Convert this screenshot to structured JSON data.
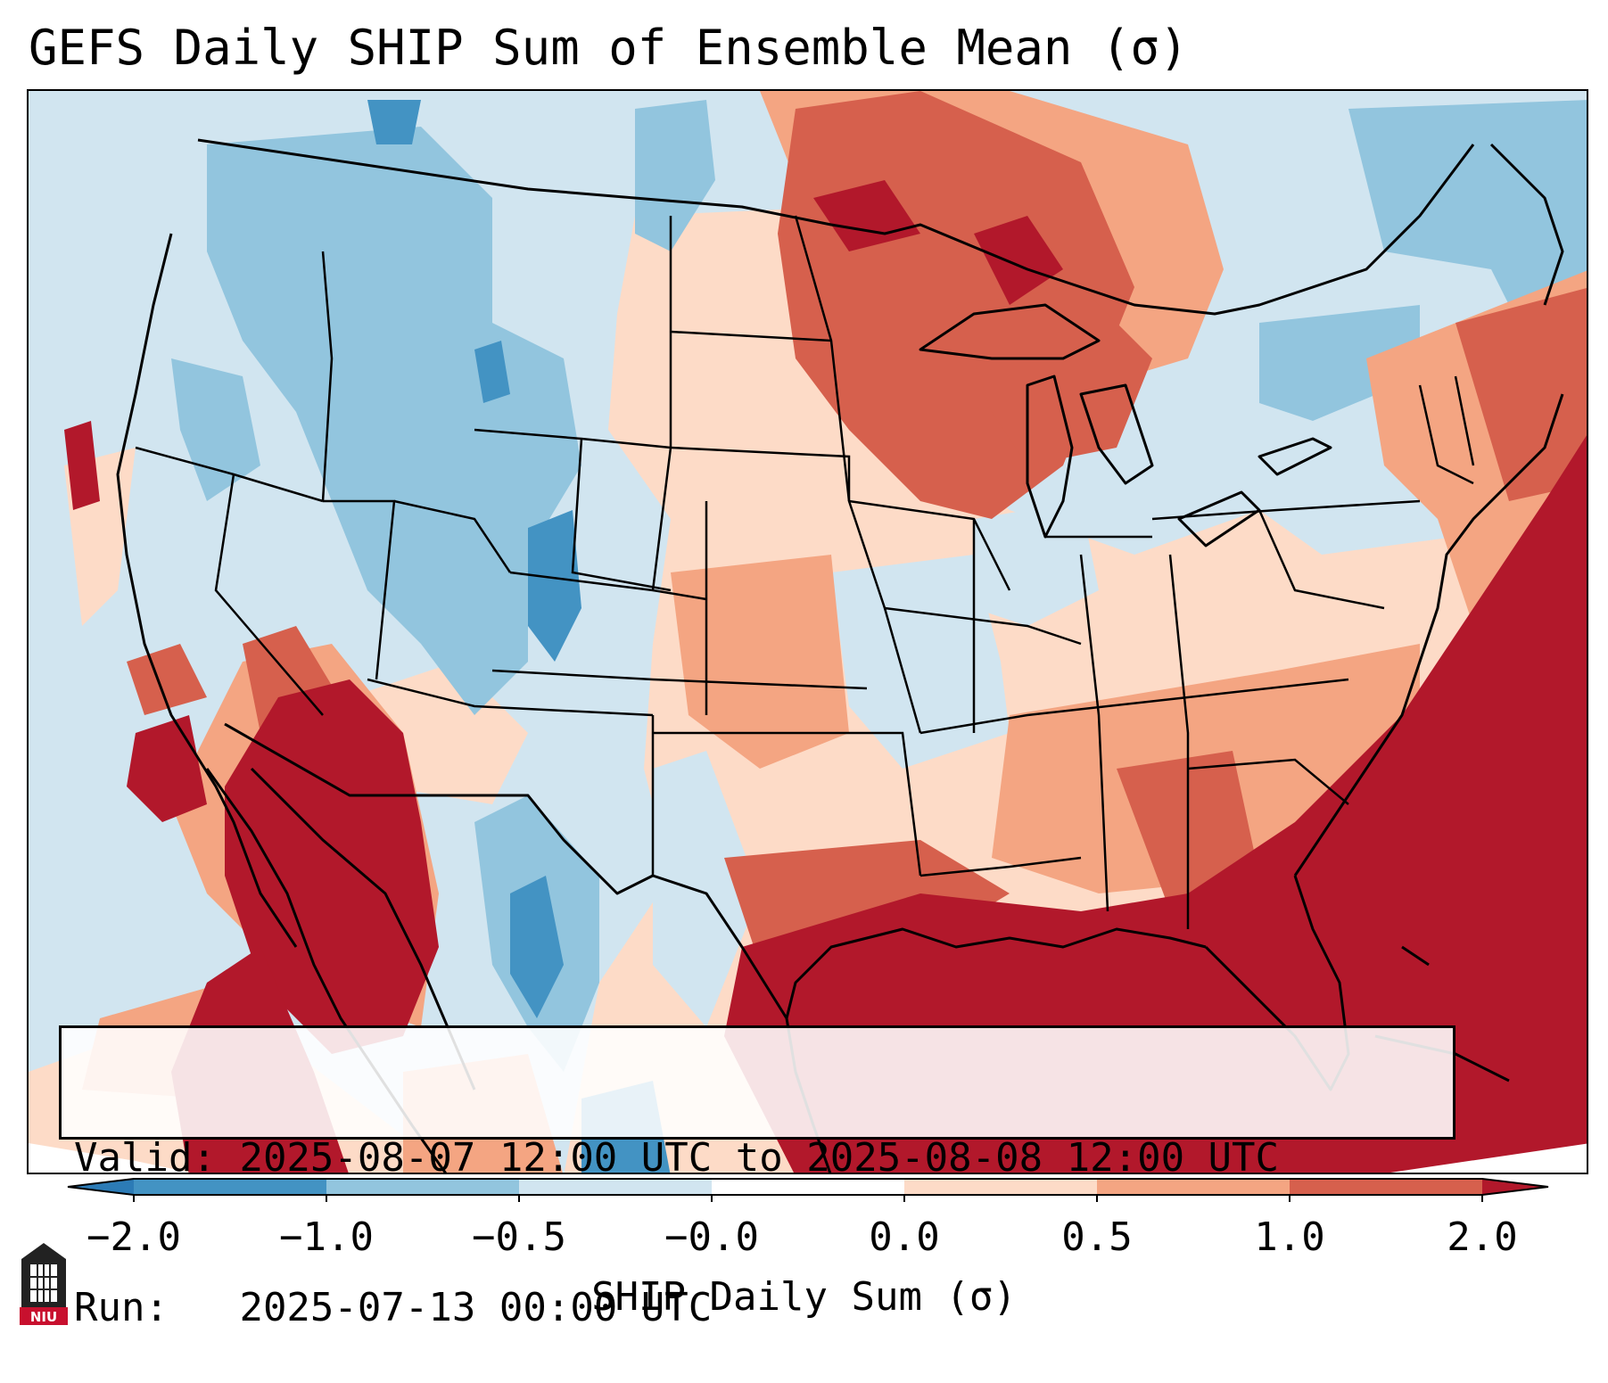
{
  "title": "GEFS Daily SHIP Sum of Ensemble Mean (σ)",
  "info": {
    "valid_label": "Valid:",
    "valid_value": "2025-08-07 12:00 UTC to 2025-08-08 12:00 UTC",
    "run_label": "Run:",
    "run_value": "2025-07-13 00:00 UTC"
  },
  "colorbar": {
    "label": "SHIP Daily Sum (σ)",
    "ticks": [
      "−2.0",
      "−1.0",
      "−0.5",
      "−0.0",
      "0.0",
      "0.5",
      "1.0",
      "2.0"
    ],
    "bins": [
      {
        "from": "below",
        "to": -2.0,
        "color": "#2c7bb6"
      },
      {
        "from": -2.0,
        "to": -1.0,
        "color": "#4393c3"
      },
      {
        "from": -1.0,
        "to": -0.5,
        "color": "#92c5de"
      },
      {
        "from": -0.5,
        "to": -0.0,
        "color": "#d1e5f0"
      },
      {
        "from": -0.0,
        "to": 0.0,
        "color": "#ffffff"
      },
      {
        "from": 0.0,
        "to": 0.5,
        "color": "#fddbc7"
      },
      {
        "from": 0.5,
        "to": 1.0,
        "color": "#f4a582"
      },
      {
        "from": 1.0,
        "to": 2.0,
        "color": "#d6604d"
      },
      {
        "from": 2.0,
        "to": "above",
        "color": "#b2182b"
      }
    ]
  },
  "logo": {
    "text": "NIU",
    "color": "#c8102e"
  }
}
